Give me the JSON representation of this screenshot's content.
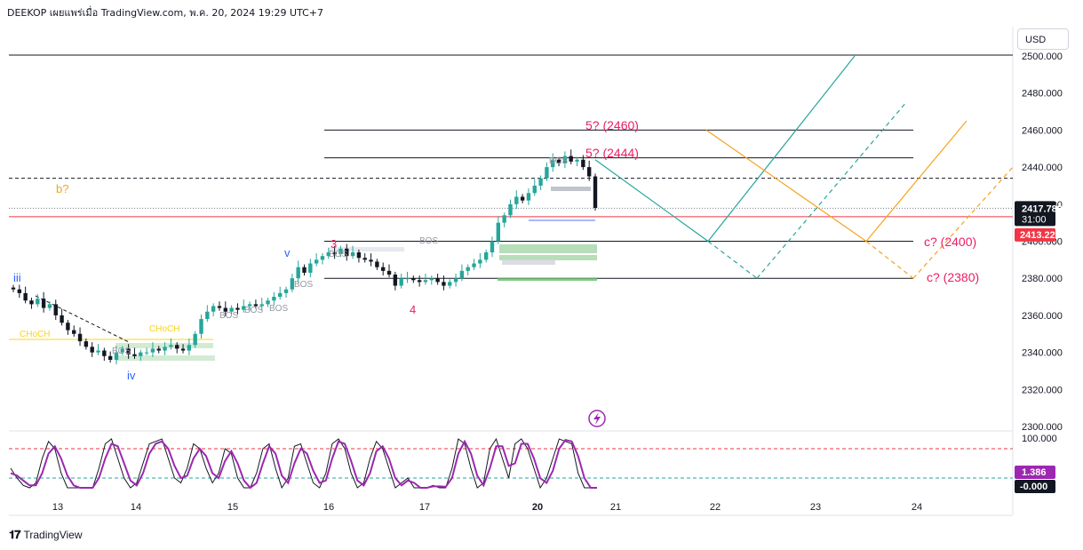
{
  "header": {
    "title": "DEEKOP เผยแพร่เมื่อ TradingView.com, พ.ค. 20, 2024 19:29 UTC+7"
  },
  "currency_button": {
    "label": "USD"
  },
  "footer": {
    "brand": "TradingView",
    "logo_icon": "tradingview-logo-icon"
  },
  "colors": {
    "up": "#26a69a",
    "down": "#131722",
    "teal_path": "#26a69a",
    "orange_path": "#f7a21b",
    "wave_label": "#e91e63",
    "blue_label": "#2962ff",
    "chocH": "#f9d51c",
    "last_price_bg": "#131722",
    "red_line": "#f23645",
    "osc_k": "#131722",
    "osc_d": "#9c27b0"
  },
  "chart_data": {
    "type": "line",
    "price_axis": {
      "range": [
        2295,
        2505
      ],
      "ticks": [
        "2500.000",
        "2480.000",
        "2460.000",
        "2440.000",
        "2420.000",
        "2400.000",
        "2380.000",
        "2360.000",
        "2340.000",
        "2320.000",
        "2300.000"
      ]
    },
    "time_axis": {
      "ticks": [
        "13",
        "14",
        "15",
        "16",
        "17",
        "20",
        "21",
        "22",
        "23",
        "24"
      ],
      "bold": [
        "20"
      ]
    },
    "price_badges": {
      "last_price": "2417.780",
      "countdown": "31:00",
      "red_line_price": "2413.222"
    },
    "price_series_close": [
      2374,
      2372,
      2368,
      2366,
      2369,
      2364,
      2366,
      2360,
      2356,
      2352,
      2350,
      2346,
      2343,
      2340,
      2341,
      2338,
      2336,
      2340,
      2342,
      2339,
      2338,
      2340,
      2340,
      2342,
      2341,
      2343,
      2344,
      2342,
      2341,
      2344,
      2350,
      2358,
      2362,
      2365,
      2364,
      2362,
      2364,
      2363,
      2365,
      2366,
      2365,
      2366,
      2368,
      2370,
      2372,
      2374,
      2380,
      2386,
      2383,
      2388,
      2390,
      2392,
      2394,
      2393,
      2396,
      2392,
      2394,
      2391,
      2390,
      2389,
      2386,
      2384,
      2382,
      2376,
      2380,
      2380,
      2379,
      2378,
      2379,
      2380,
      2378,
      2376,
      2378,
      2380,
      2384,
      2386,
      2388,
      2390,
      2394,
      2400,
      2410,
      2414,
      2420,
      2424,
      2422,
      2426,
      2430,
      2434,
      2440,
      2444,
      2442,
      2446,
      2443,
      2444,
      2440,
      2435,
      2418
    ],
    "horizontal_levels": [
      2500,
      2460,
      2445,
      2434,
      2400,
      2380
    ],
    "wave_labels": [
      {
        "text": "iii",
        "color": "blue"
      },
      {
        "text": "iv",
        "color": "blue"
      },
      {
        "text": "v",
        "color": "blue"
      },
      {
        "text": "3",
        "color": "pink"
      },
      {
        "text": "4",
        "color": "pink"
      },
      {
        "text": "b?",
        "color": "orange"
      }
    ],
    "annotations": [
      "5? (2460)",
      "5? (2444)",
      "c? (2400)",
      "c? (2380)"
    ],
    "structure_labels": [
      "CHoCH",
      "CHoCH",
      "BOS",
      "BOS",
      "BOS",
      "BOS",
      "BOS",
      "BOS",
      "BOS",
      "BOS"
    ],
    "projections": {
      "teal_solid": [
        [
          2444,
          0
        ],
        [
          2400,
          1
        ],
        [
          2500,
          2
        ]
      ],
      "teal_dashed": [
        [
          2380,
          0
        ],
        [
          2475,
          1
        ]
      ],
      "orange_solid": [
        [
          2460,
          0
        ],
        [
          2400,
          1
        ],
        [
          2465,
          2
        ]
      ],
      "orange_dashed": [
        [
          2380,
          0
        ],
        [
          2440,
          1
        ]
      ]
    },
    "oscillator": {
      "type": "stochastic",
      "range": [
        0,
        100
      ],
      "ticks": [
        "100.000"
      ],
      "levels": [
        80,
        20
      ],
      "k_value": "1.386",
      "d_value": "-0.000",
      "k": [
        40,
        20,
        5,
        0,
        10,
        60,
        95,
        80,
        30,
        0,
        0,
        0,
        0,
        0,
        40,
        90,
        100,
        60,
        20,
        0,
        10,
        50,
        90,
        95,
        100,
        60,
        20,
        10,
        40,
        90,
        80,
        40,
        10,
        30,
        80,
        70,
        20,
        0,
        0,
        30,
        80,
        90,
        40,
        0,
        20,
        85,
        90,
        50,
        10,
        0,
        30,
        90,
        100,
        80,
        30,
        0,
        10,
        60,
        95,
        80,
        40,
        0,
        10,
        20,
        0,
        0,
        0,
        5,
        0,
        0,
        40,
        100,
        90,
        40,
        0,
        10,
        80,
        100,
        60,
        20,
        90,
        100,
        80,
        40,
        0,
        20,
        60,
        100,
        95,
        90,
        30,
        0,
        0,
        0
      ],
      "d": [
        30,
        25,
        15,
        5,
        5,
        30,
        70,
        85,
        60,
        25,
        5,
        0,
        0,
        0,
        20,
        60,
        90,
        85,
        50,
        15,
        5,
        30,
        70,
        90,
        95,
        80,
        45,
        20,
        25,
        60,
        80,
        65,
        30,
        20,
        55,
        75,
        50,
        15,
        0,
        10,
        50,
        85,
        70,
        25,
        10,
        50,
        80,
        70,
        35,
        10,
        15,
        60,
        95,
        90,
        55,
        15,
        5,
        30,
        75,
        85,
        60,
        20,
        5,
        15,
        10,
        0,
        0,
        3,
        3,
        2,
        20,
        70,
        95,
        70,
        25,
        5,
        40,
        85,
        85,
        45,
        50,
        90,
        90,
        60,
        20,
        10,
        35,
        80,
        98,
        95,
        65,
        20,
        0,
        0
      ]
    }
  }
}
